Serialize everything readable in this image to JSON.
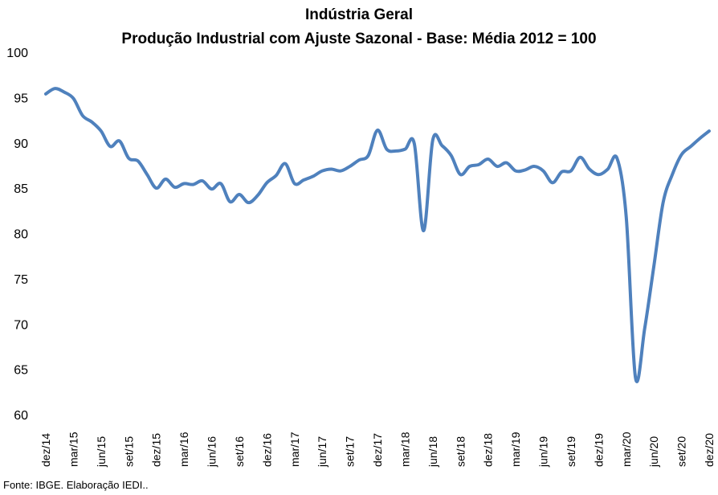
{
  "titles": {
    "line1": "Indústria Geral",
    "line2": "Produção Industrial com Ajuste Sazonal - Base: Média 2012 = 100"
  },
  "source": "Fonte: IBGE. Elaboração IEDI..",
  "colors": {
    "line": "#4F81BD"
  },
  "chart_data": {
    "type": "line",
    "title": "Indústria Geral - Produção Industrial com Ajuste Sazonal - Base: Média 2012 = 100",
    "xlabel": "",
    "ylabel": "",
    "ylim": [
      60,
      100
    ],
    "yticks": [
      60,
      65,
      70,
      75,
      80,
      85,
      90,
      95,
      100
    ],
    "grid": false,
    "legend": "none",
    "x_tick_labels": [
      "dez/14",
      "mar/15",
      "jun/15",
      "set/15",
      "dez/15",
      "mar/16",
      "jun/16",
      "set/16",
      "dez/16",
      "mar/17",
      "jun/17",
      "set/17",
      "dez/17",
      "mar/18",
      "jun/18",
      "set/18",
      "dez/18",
      "mar/19",
      "jun/19",
      "set/19",
      "dez/19",
      "mar/20",
      "jun/20",
      "set/20",
      "dez/20"
    ],
    "x": [
      "dez/14",
      "jan/15",
      "fev/15",
      "mar/15",
      "abr/15",
      "mai/15",
      "jun/15",
      "jul/15",
      "ago/15",
      "set/15",
      "out/15",
      "nov/15",
      "dez/15",
      "jan/16",
      "fev/16",
      "mar/16",
      "abr/16",
      "mai/16",
      "jun/16",
      "jul/16",
      "ago/16",
      "set/16",
      "out/16",
      "nov/16",
      "dez/16",
      "jan/17",
      "fev/17",
      "mar/17",
      "abr/17",
      "mai/17",
      "jun/17",
      "jul/17",
      "ago/17",
      "set/17",
      "out/17",
      "nov/17",
      "dez/17",
      "jan/18",
      "fev/18",
      "mar/18",
      "abr/18",
      "mai/18",
      "jun/18",
      "jul/18",
      "ago/18",
      "set/18",
      "out/18",
      "nov/18",
      "dez/18",
      "jan/19",
      "fev/19",
      "mar/19",
      "abr/19",
      "mai/19",
      "jun/19",
      "jul/19",
      "ago/19",
      "set/19",
      "out/19",
      "nov/19",
      "dez/19",
      "jan/20",
      "fev/20",
      "mar/20",
      "abr/20",
      "mai/20",
      "jun/20",
      "jul/20",
      "ago/20",
      "set/20",
      "out/20",
      "nov/20",
      "dez/20"
    ],
    "series": [
      {
        "values": [
          95.4,
          96.0,
          95.6,
          94.9,
          93.0,
          92.3,
          91.3,
          89.6,
          90.2,
          88.3,
          88.0,
          86.5,
          85.0,
          86.0,
          85.1,
          85.5,
          85.4,
          85.8,
          84.9,
          85.5,
          83.5,
          84.3,
          83.4,
          84.2,
          85.6,
          86.4,
          87.7,
          85.5,
          85.9,
          86.3,
          86.9,
          87.1,
          86.9,
          87.4,
          88.1,
          88.6,
          91.4,
          89.3,
          89.1,
          89.3,
          89.9,
          80.3,
          90.3,
          89.7,
          88.6,
          86.5,
          87.4,
          87.6,
          88.2,
          87.4,
          87.8,
          86.9,
          87.0,
          87.4,
          86.9,
          85.6,
          86.8,
          86.9,
          88.4,
          87.1,
          86.5,
          87.1,
          88.3,
          81.8,
          64.1,
          69.5,
          76.4,
          83.4,
          86.5,
          88.7,
          89.6,
          90.5,
          91.3
        ]
      }
    ]
  }
}
